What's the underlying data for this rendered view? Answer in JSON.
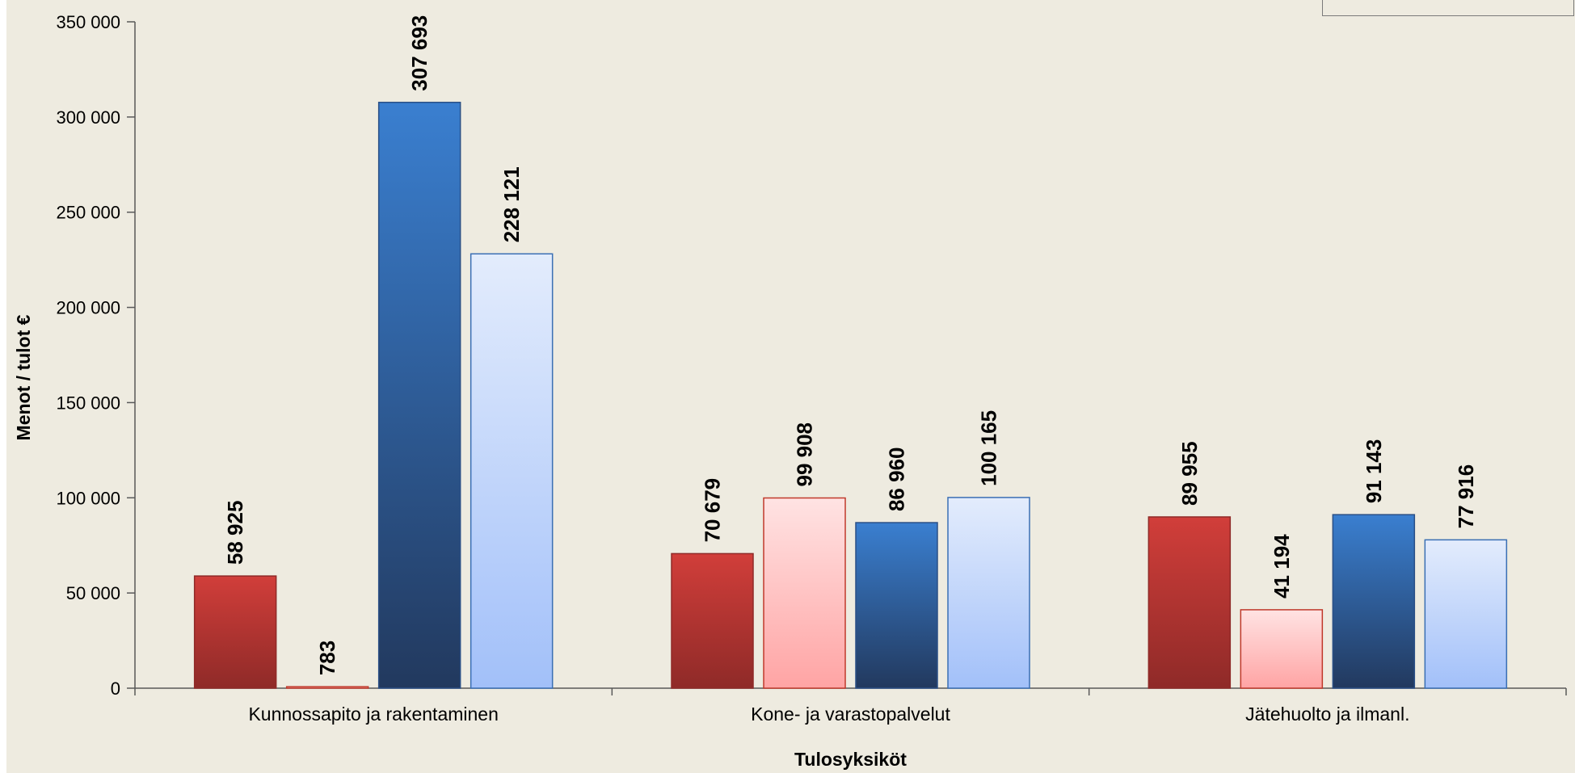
{
  "chart_data": {
    "type": "bar",
    "xlabel": "Tulosyksiköt",
    "ylabel": "Menot / tulot €",
    "ylim": [
      0,
      350000
    ],
    "yticks": [
      0,
      50000,
      100000,
      150000,
      200000,
      250000,
      300000,
      350000
    ],
    "ytick_labels": [
      "0",
      "50 000",
      "100 000",
      "150 000",
      "200 000",
      "250 000",
      "300 000",
      "350 000"
    ],
    "categories": [
      "Kunnossapito ja rakentaminen",
      "Kone- ja varastopalvelut",
      "Jätehuolto ja ilmanl."
    ],
    "series": [
      {
        "values": [
          58925,
          70679,
          89955
        ],
        "value_labels": [
          "58 925",
          "70 679",
          "89 955"
        ],
        "color_top": "#d13e3a",
        "color_bottom": "#8f2a28",
        "stroke": "#8f2a28"
      },
      {
        "values": [
          783,
          99908,
          41194
        ],
        "value_labels": [
          "783",
          "99 908",
          "41 194"
        ],
        "color_top": "#ffe3e3",
        "color_bottom": "#ffa4a4",
        "stroke": "#c0392b"
      },
      {
        "values": [
          307693,
          86960,
          91143
        ],
        "value_labels": [
          "307 693",
          "86 960",
          "91 143"
        ],
        "color_top": "#3a7fd0",
        "color_bottom": "#22395e",
        "stroke": "#2a4f86"
      },
      {
        "values": [
          228121,
          100165,
          77916
        ],
        "value_labels": [
          "228 121",
          "100 165",
          "77 916"
        ],
        "color_top": "#e3ecfc",
        "color_bottom": "#a2c0f9",
        "stroke": "#3a6fb4"
      }
    ],
    "grid": false,
    "legend": "top-right"
  }
}
